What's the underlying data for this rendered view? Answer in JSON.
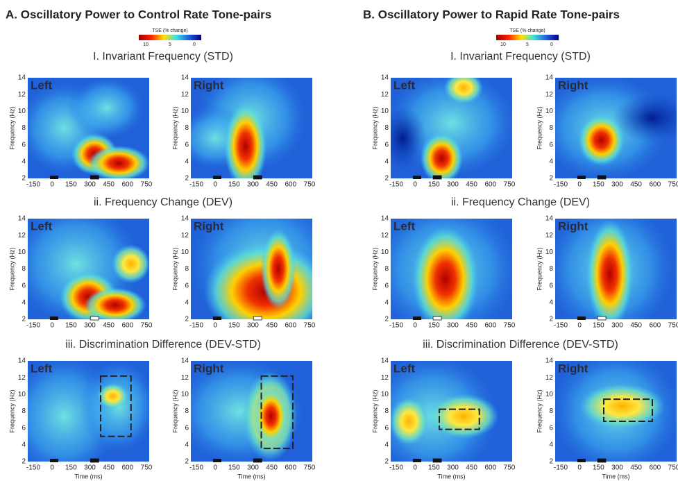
{
  "sections": [
    {
      "title": "A. Oscillatory Power to Control Rate Tone-pairs",
      "colorbar": {
        "label": "TSE (% change)",
        "ticks": [
          "10",
          "5",
          "0"
        ]
      },
      "rows": [
        {
          "title": "I. Invariant Frequency (STD)",
          "panels": [
            {
              "label": "Left"
            },
            {
              "label": "Right"
            }
          ]
        },
        {
          "title": "ii. Frequency Change (DEV)",
          "panels": [
            {
              "label": "Left"
            },
            {
              "label": "Right"
            }
          ]
        },
        {
          "title": "iii. Discrimination Difference (DEV-STD)",
          "panels": [
            {
              "label": "Left"
            },
            {
              "label": "Right"
            }
          ]
        }
      ]
    },
    {
      "title": "B. Oscillatory Power to Rapid Rate Tone-pairs",
      "colorbar": {
        "label": "TSE (% change)",
        "ticks": [
          "10",
          "5",
          "0"
        ]
      },
      "rows": [
        {
          "title": "I. Invariant Frequency (STD)",
          "panels": [
            {
              "label": "Left"
            },
            {
              "label": "Right"
            }
          ]
        },
        {
          "title": "ii. Frequency Change (DEV)",
          "panels": [
            {
              "label": "Left"
            },
            {
              "label": "Right"
            }
          ]
        },
        {
          "title": "iii. Discrimination Difference (DEV-STD)",
          "panels": [
            {
              "label": "Left"
            },
            {
              "label": "Right"
            }
          ]
        }
      ]
    }
  ],
  "y_axis": {
    "label": "Frequency (Hz)",
    "ticks": [
      "2",
      "4",
      "6",
      "8",
      "10",
      "12",
      "14"
    ]
  },
  "x_axis": {
    "label": "Time (ms)",
    "ticks": [
      "-150",
      "0",
      "150",
      "300",
      "450",
      "600",
      "750"
    ]
  }
}
